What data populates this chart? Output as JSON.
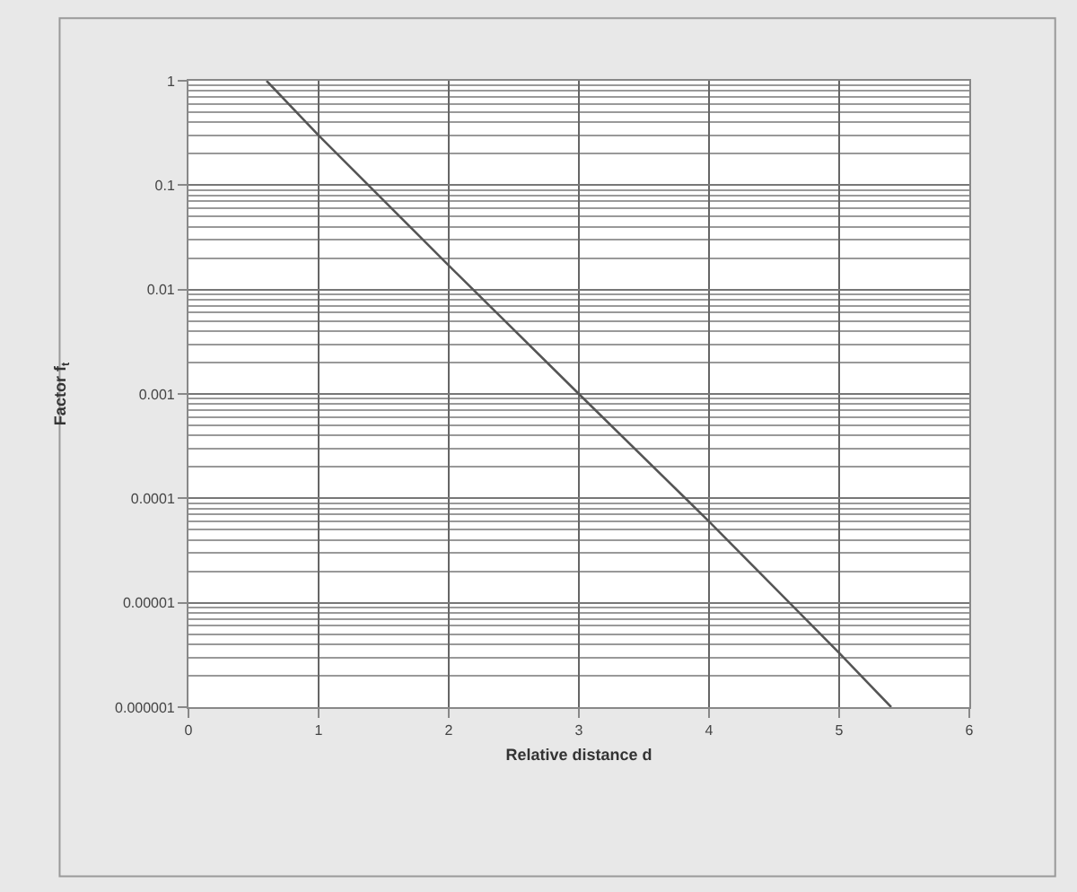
{
  "chart_data": {
    "type": "line",
    "xlabel": "Relative distance d",
    "ylabel": "Factor f$_{t}$",
    "log": "y",
    "grid": true,
    "x": [
      0.6,
      1,
      2,
      3,
      4,
      5,
      5.4
    ],
    "series": [
      {
        "color": "#555555",
        "values": [
          1,
          0.3,
          0.017,
          0.001,
          6e-05,
          3.3e-06,
          1e-06
        ]
      }
    ],
    "xlim": [
      0,
      6
    ],
    "xticks": [
      0,
      1,
      2,
      3,
      4,
      5,
      6
    ],
    "ylim": [
      1e-06,
      1
    ],
    "yticks": [
      {
        "value": 1e-06,
        "label": "0.000001"
      },
      {
        "value": 1e-05,
        "label": "0.00001"
      },
      {
        "value": 0.0001,
        "label": "0.0001"
      },
      {
        "value": 0.001,
        "label": "0.001"
      },
      {
        "value": 0.01,
        "label": "0.01"
      },
      {
        "value": 0.1,
        "label": "0.1"
      },
      {
        "value": 1,
        "label": "1"
      }
    ],
    "marker": "none",
    "line_style": "solid"
  }
}
